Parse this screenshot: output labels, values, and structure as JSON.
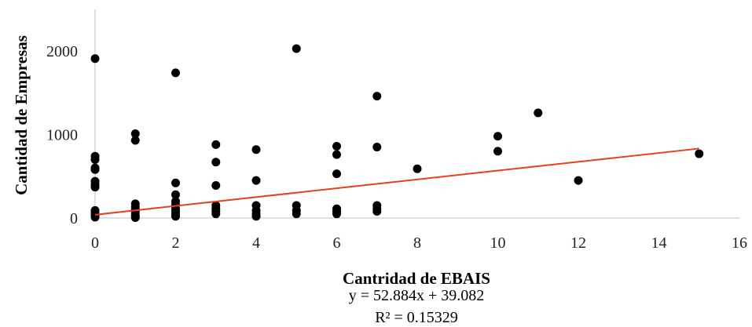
{
  "chart_data": {
    "type": "scatter",
    "title": "",
    "xlabel": "Cantridad de EBAIS",
    "ylabel": "Cantidad de Empresas",
    "xlim": [
      0,
      16
    ],
    "ylim": [
      0,
      2500
    ],
    "x_ticks": [
      0,
      2,
      4,
      6,
      8,
      10,
      12,
      14,
      16
    ],
    "y_ticks": [
      0,
      1000,
      2000
    ],
    "grid": false,
    "legend": "none",
    "marker_color": "#000000",
    "trendline_color": "#e8401c",
    "points": [
      {
        "x": 0,
        "y": 1910
      },
      {
        "x": 0,
        "y": 740
      },
      {
        "x": 0,
        "y": 700
      },
      {
        "x": 0,
        "y": 600
      },
      {
        "x": 0,
        "y": 580
      },
      {
        "x": 0,
        "y": 440
      },
      {
        "x": 0,
        "y": 400
      },
      {
        "x": 0,
        "y": 370
      },
      {
        "x": 0,
        "y": 90
      },
      {
        "x": 0,
        "y": 60
      },
      {
        "x": 0,
        "y": 40
      },
      {
        "x": 0,
        "y": 20
      },
      {
        "x": 0,
        "y": 10
      },
      {
        "x": 1,
        "y": 1010
      },
      {
        "x": 1,
        "y": 930
      },
      {
        "x": 1,
        "y": 170
      },
      {
        "x": 1,
        "y": 130
      },
      {
        "x": 1,
        "y": 100
      },
      {
        "x": 1,
        "y": 70
      },
      {
        "x": 1,
        "y": 40
      },
      {
        "x": 1,
        "y": 20
      },
      {
        "x": 1,
        "y": 5
      },
      {
        "x": 2,
        "y": 1740
      },
      {
        "x": 2,
        "y": 420
      },
      {
        "x": 2,
        "y": 280
      },
      {
        "x": 2,
        "y": 200
      },
      {
        "x": 2,
        "y": 160
      },
      {
        "x": 2,
        "y": 110
      },
      {
        "x": 2,
        "y": 80
      },
      {
        "x": 2,
        "y": 50
      },
      {
        "x": 2,
        "y": 20
      },
      {
        "x": 3,
        "y": 880
      },
      {
        "x": 3,
        "y": 670
      },
      {
        "x": 3,
        "y": 390
      },
      {
        "x": 3,
        "y": 150
      },
      {
        "x": 3,
        "y": 110
      },
      {
        "x": 3,
        "y": 80
      },
      {
        "x": 3,
        "y": 50
      },
      {
        "x": 4,
        "y": 820
      },
      {
        "x": 4,
        "y": 450
      },
      {
        "x": 4,
        "y": 150
      },
      {
        "x": 4,
        "y": 90
      },
      {
        "x": 4,
        "y": 50
      },
      {
        "x": 4,
        "y": 20
      },
      {
        "x": 5,
        "y": 2030
      },
      {
        "x": 5,
        "y": 150
      },
      {
        "x": 5,
        "y": 90
      },
      {
        "x": 5,
        "y": 50
      },
      {
        "x": 6,
        "y": 860
      },
      {
        "x": 6,
        "y": 760
      },
      {
        "x": 6,
        "y": 530
      },
      {
        "x": 6,
        "y": 110
      },
      {
        "x": 6,
        "y": 80
      },
      {
        "x": 6,
        "y": 50
      },
      {
        "x": 7,
        "y": 1460
      },
      {
        "x": 7,
        "y": 850
      },
      {
        "x": 7,
        "y": 150
      },
      {
        "x": 7,
        "y": 110
      },
      {
        "x": 7,
        "y": 80
      },
      {
        "x": 8,
        "y": 590
      },
      {
        "x": 10,
        "y": 980
      },
      {
        "x": 10,
        "y": 800
      },
      {
        "x": 11,
        "y": 1260
      },
      {
        "x": 12,
        "y": 450
      },
      {
        "x": 15,
        "y": 770
      }
    ],
    "trendline": {
      "type": "linear",
      "slope": 52.884,
      "intercept": 39.082,
      "x_range": [
        0,
        15
      ],
      "equation": "y = 52.884x + 39.082",
      "r_squared": "R² = 0.15329"
    }
  }
}
